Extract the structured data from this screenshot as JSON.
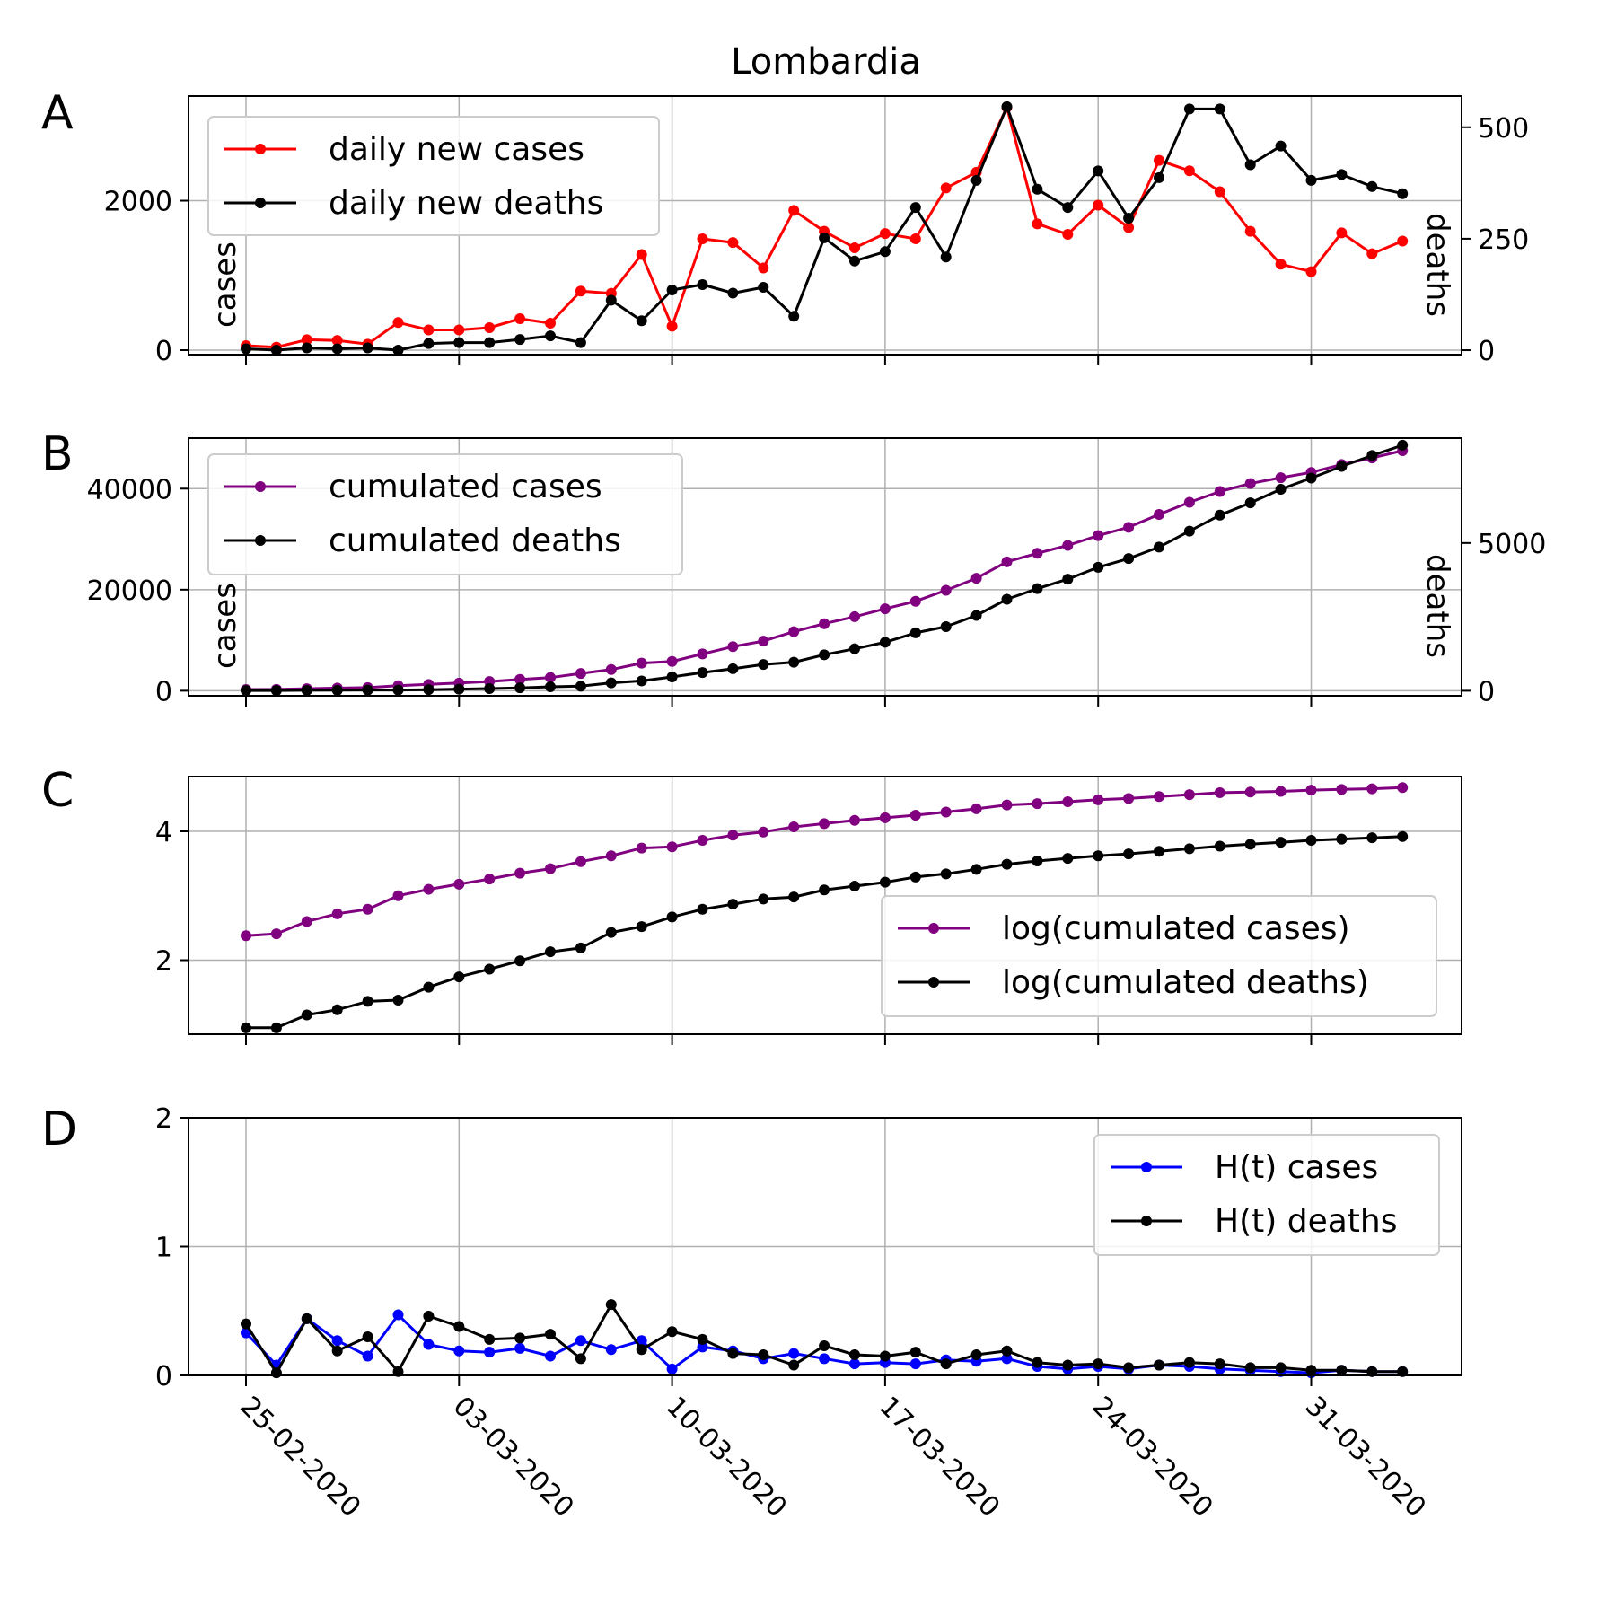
{
  "figure_title": "Lombardia",
  "panel_letters": [
    "A",
    "B",
    "C",
    "D"
  ],
  "x_tick_labels": [
    "25-02-2020",
    "03-03-2020",
    "10-03-2020",
    "17-03-2020",
    "24-03-2020",
    "31-03-2020"
  ],
  "colors": {
    "daily_cases": "#ff0000",
    "deaths": "#000000",
    "cumulated_cases": "#800080",
    "h_cases": "#0000ff",
    "grid": "#b0b0b0"
  },
  "chart_data": [
    {
      "panel": "A",
      "type": "line",
      "title": "Lombardia",
      "x": [
        "25-02-2020",
        "26-02-2020",
        "27-02-2020",
        "28-02-2020",
        "29-02-2020",
        "01-03-2020",
        "02-03-2020",
        "03-03-2020",
        "04-03-2020",
        "05-03-2020",
        "06-03-2020",
        "07-03-2020",
        "08-03-2020",
        "09-03-2020",
        "10-03-2020",
        "11-03-2020",
        "12-03-2020",
        "13-03-2020",
        "14-03-2020",
        "15-03-2020",
        "16-03-2020",
        "17-03-2020",
        "18-03-2020",
        "19-03-2020",
        "20-03-2020",
        "21-03-2020",
        "22-03-2020",
        "23-03-2020",
        "24-03-2020",
        "25-03-2020",
        "26-03-2020",
        "27-03-2020",
        "28-03-2020",
        "29-03-2020",
        "30-03-2020",
        "31-03-2020",
        "01-04-2020",
        "02-04-2020",
        "03-04-2020"
      ],
      "ylabel": "cases",
      "y2label": "deaths",
      "ylim": [
        -60,
        3400
      ],
      "y2lim": [
        -10,
        570
      ],
      "y_ticks": [
        0,
        2000
      ],
      "y2_ticks": [
        0,
        250,
        500
      ],
      "legend": "top-left",
      "grid": true,
      "series": [
        {
          "name": "daily new cases",
          "axis": "left",
          "color": "#ff0000",
          "values": [
            60,
            40,
            140,
            130,
            80,
            370,
            270,
            270,
            300,
            420,
            360,
            790,
            760,
            1280,
            320,
            1490,
            1440,
            1100,
            1870,
            1590,
            1370,
            1560,
            1490,
            2170,
            2380,
            3250,
            1690,
            1550,
            1940,
            1640,
            2540,
            2400,
            2120,
            1590,
            1150,
            1050,
            1570,
            1290,
            1460
          ]
        },
        {
          "name": "daily new deaths",
          "axis": "right",
          "color": "#000000",
          "values": [
            3,
            0,
            5,
            3,
            5,
            0,
            15,
            17,
            17,
            24,
            32,
            17,
            112,
            66,
            135,
            147,
            128,
            141,
            76,
            252,
            200,
            221,
            320,
            209,
            381,
            546,
            361,
            320,
            402,
            296,
            387,
            541,
            541,
            416,
            458,
            381,
            394,
            367,
            351
          ]
        }
      ]
    },
    {
      "panel": "B",
      "type": "line",
      "x": [
        "25-02-2020",
        "26-02-2020",
        "27-02-2020",
        "28-02-2020",
        "29-02-2020",
        "01-03-2020",
        "02-03-2020",
        "03-03-2020",
        "04-03-2020",
        "05-03-2020",
        "06-03-2020",
        "07-03-2020",
        "08-03-2020",
        "09-03-2020",
        "10-03-2020",
        "11-03-2020",
        "12-03-2020",
        "13-03-2020",
        "14-03-2020",
        "15-03-2020",
        "16-03-2020",
        "17-03-2020",
        "18-03-2020",
        "19-03-2020",
        "20-03-2020",
        "21-03-2020",
        "22-03-2020",
        "23-03-2020",
        "24-03-2020",
        "25-03-2020",
        "26-03-2020",
        "27-03-2020",
        "28-03-2020",
        "29-03-2020",
        "30-03-2020",
        "31-03-2020",
        "01-04-2020",
        "02-04-2020",
        "03-04-2020"
      ],
      "ylabel": "cases",
      "y2label": "deaths",
      "ylim": [
        -1000,
        50000
      ],
      "y2lim": [
        -170,
        8550
      ],
      "y_ticks": [
        0,
        20000,
        40000
      ],
      "y2_ticks": [
        0,
        5000
      ],
      "legend": "top-left",
      "grid": true,
      "series": [
        {
          "name": "cumulated cases",
          "axis": "left",
          "color": "#800080",
          "values": [
            240,
            260,
            400,
            530,
            620,
            990,
            1250,
            1520,
            1820,
            2250,
            2610,
            3420,
            4190,
            5470,
            5790,
            7280,
            8730,
            9820,
            11690,
            13270,
            14650,
            16220,
            17710,
            19880,
            22260,
            25510,
            27200,
            28760,
            30700,
            32350,
            34890,
            37300,
            39420,
            41010,
            42160,
            43210,
            44770,
            46070,
            47520
          ]
        },
        {
          "name": "cumulated deaths",
          "axis": "right",
          "color": "#000000",
          "values": [
            9,
            9,
            14,
            17,
            23,
            24,
            38,
            55,
            73,
            98,
            135,
            154,
            267,
            333,
            468,
            617,
            744,
            890,
            966,
            1218,
            1420,
            1640,
            1959,
            2168,
            2549,
            3095,
            3456,
            3776,
            4178,
            4474,
            4861,
            5402,
            5944,
            6360,
            6818,
            7199,
            7593,
            7960,
            8311
          ]
        }
      ]
    },
    {
      "panel": "C",
      "type": "line",
      "x": [
        "25-02-2020",
        "26-02-2020",
        "27-02-2020",
        "28-02-2020",
        "29-02-2020",
        "01-03-2020",
        "02-03-2020",
        "03-03-2020",
        "04-03-2020",
        "05-03-2020",
        "06-03-2020",
        "07-03-2020",
        "08-03-2020",
        "09-03-2020",
        "10-03-2020",
        "11-03-2020",
        "12-03-2020",
        "13-03-2020",
        "14-03-2020",
        "15-03-2020",
        "16-03-2020",
        "17-03-2020",
        "18-03-2020",
        "19-03-2020",
        "20-03-2020",
        "21-03-2020",
        "22-03-2020",
        "23-03-2020",
        "24-03-2020",
        "25-03-2020",
        "26-03-2020",
        "27-03-2020",
        "28-03-2020",
        "29-03-2020",
        "30-03-2020",
        "31-03-2020",
        "01-04-2020",
        "02-04-2020",
        "03-04-2020"
      ],
      "ylim": [
        0.85,
        4.85
      ],
      "y_ticks": [
        2,
        4
      ],
      "legend": "center-right",
      "grid": true,
      "series": [
        {
          "name": "log(cumulated cases)",
          "color": "#800080",
          "values": [
            2.38,
            2.41,
            2.6,
            2.72,
            2.79,
            3.0,
            3.1,
            3.18,
            3.26,
            3.35,
            3.42,
            3.53,
            3.62,
            3.74,
            3.76,
            3.86,
            3.94,
            3.99,
            4.07,
            4.12,
            4.17,
            4.21,
            4.25,
            4.3,
            4.35,
            4.41,
            4.43,
            4.46,
            4.49,
            4.51,
            4.54,
            4.57,
            4.6,
            4.61,
            4.62,
            4.64,
            4.65,
            4.66,
            4.68
          ]
        },
        {
          "name": "log(cumulated deaths)",
          "color": "#000000",
          "values": [
            0.95,
            0.95,
            1.15,
            1.23,
            1.36,
            1.38,
            1.58,
            1.74,
            1.86,
            1.99,
            2.13,
            2.19,
            2.43,
            2.52,
            2.67,
            2.79,
            2.87,
            2.95,
            2.98,
            3.09,
            3.15,
            3.21,
            3.29,
            3.34,
            3.41,
            3.49,
            3.54,
            3.58,
            3.62,
            3.65,
            3.69,
            3.73,
            3.77,
            3.8,
            3.83,
            3.86,
            3.88,
            3.9,
            3.92
          ]
        }
      ]
    },
    {
      "panel": "D",
      "type": "line",
      "x": [
        "25-02-2020",
        "26-02-2020",
        "27-02-2020",
        "28-02-2020",
        "29-02-2020",
        "01-03-2020",
        "02-03-2020",
        "03-03-2020",
        "04-03-2020",
        "05-03-2020",
        "06-03-2020",
        "07-03-2020",
        "08-03-2020",
        "09-03-2020",
        "10-03-2020",
        "11-03-2020",
        "12-03-2020",
        "13-03-2020",
        "14-03-2020",
        "15-03-2020",
        "16-03-2020",
        "17-03-2020",
        "18-03-2020",
        "19-03-2020",
        "20-03-2020",
        "21-03-2020",
        "22-03-2020",
        "23-03-2020",
        "24-03-2020",
        "25-03-2020",
        "26-03-2020",
        "27-03-2020",
        "28-03-2020",
        "29-03-2020",
        "30-03-2020",
        "31-03-2020",
        "01-04-2020",
        "02-04-2020",
        "03-04-2020"
      ],
      "ylim": [
        0,
        2
      ],
      "y_ticks": [
        0,
        1,
        2
      ],
      "legend": "top-right",
      "grid": true,
      "series": [
        {
          "name": "H(t) cases",
          "color": "#0000ff",
          "values": [
            0.33,
            0.08,
            0.44,
            0.27,
            0.15,
            0.47,
            0.24,
            0.19,
            0.18,
            0.21,
            0.15,
            0.27,
            0.2,
            0.27,
            0.05,
            0.22,
            0.19,
            0.13,
            0.17,
            0.13,
            0.09,
            0.1,
            0.09,
            0.12,
            0.11,
            0.13,
            0.07,
            0.05,
            0.07,
            0.05,
            0.08,
            0.07,
            0.05,
            0.04,
            0.03,
            0.02,
            0.04,
            0.03,
            0.03
          ]
        },
        {
          "name": "H(t) deaths",
          "color": "#000000",
          "values": [
            0.4,
            0.02,
            0.44,
            0.19,
            0.3,
            0.03,
            0.46,
            0.38,
            0.28,
            0.29,
            0.32,
            0.13,
            0.55,
            0.2,
            0.34,
            0.28,
            0.17,
            0.16,
            0.08,
            0.23,
            0.16,
            0.15,
            0.18,
            0.09,
            0.16,
            0.19,
            0.1,
            0.08,
            0.09,
            0.06,
            0.08,
            0.1,
            0.09,
            0.06,
            0.06,
            0.04,
            0.04,
            0.03,
            0.03
          ]
        }
      ]
    }
  ]
}
